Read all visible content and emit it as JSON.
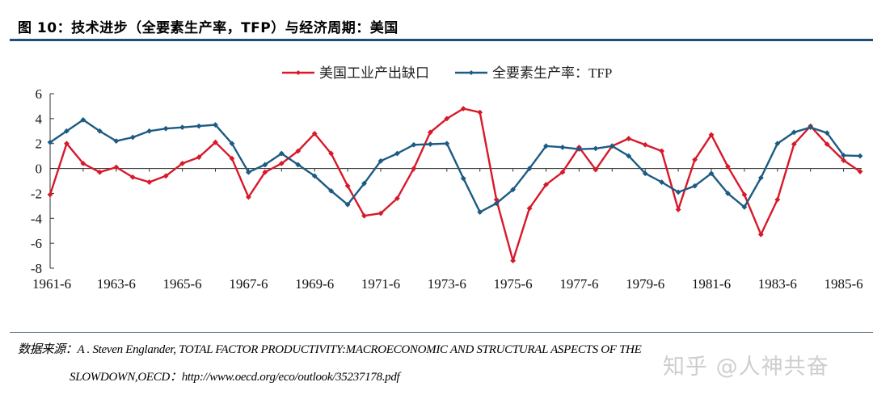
{
  "header": {
    "figure_title": "图 10：技术进步（全要素生产率，TFP）与经济周期：美国"
  },
  "footer": {
    "source_line1": "数据来源：A . Steven Englander, TOTAL FACTOR PRODUCTIVITY:MACROECONOMIC AND STRUCTURAL ASPECTS OF THE",
    "source_line2": "SLOWDOWN,OECD：http://www.oecd.org/eco/outlook/35237178.pdf",
    "watermark": "知乎 @人神共奋"
  },
  "chart_data": {
    "type": "line",
    "title": "",
    "xlabel": "",
    "ylabel": "",
    "ylim": [
      -8,
      6
    ],
    "yticks": [
      6,
      4,
      2,
      0,
      -2,
      -4,
      -6,
      -8
    ],
    "xtick_labels": [
      "1961-6",
      "1963-6",
      "1965-6",
      "1967-6",
      "1969-6",
      "1971-6",
      "1973-6",
      "1975-6",
      "1977-6",
      "1979-6",
      "1981-6",
      "1983-6",
      "1985-6"
    ],
    "frequency": "semi-annual",
    "num_points": 50,
    "grid": false,
    "legend_position": "top-center",
    "series": [
      {
        "name": "美国工业产出缺口",
        "color": "#d7192a",
        "values": [
          -2.1,
          2.0,
          0.4,
          -0.3,
          0.1,
          -0.7,
          -1.1,
          -0.6,
          0.4,
          0.9,
          2.1,
          0.8,
          -2.3,
          -0.3,
          0.4,
          1.4,
          2.8,
          1.2,
          -1.4,
          -3.8,
          -3.6,
          -2.4,
          0.0,
          2.9,
          4.0,
          4.8,
          4.5,
          -2.5,
          -7.4,
          -3.2,
          -1.3,
          -0.3,
          1.7,
          -0.1,
          1.8,
          2.4,
          1.9,
          1.4,
          -3.3,
          0.7,
          2.7,
          0.15,
          -2.1,
          -5.3,
          -2.5,
          1.95,
          3.4,
          1.95,
          0.65,
          -0.25
        ]
      },
      {
        "name": "全要素生产率：TFP",
        "color": "#1c5b82",
        "values": [
          2.1,
          3.0,
          3.9,
          3.0,
          2.2,
          2.5,
          3.0,
          3.2,
          3.3,
          3.4,
          3.5,
          2.0,
          -0.3,
          0.3,
          1.2,
          0.3,
          -0.6,
          -1.8,
          -2.9,
          -1.2,
          0.6,
          1.2,
          1.9,
          1.95,
          2.0,
          -0.8,
          -3.5,
          -2.8,
          -1.7,
          0.0,
          1.8,
          1.7,
          1.55,
          1.6,
          1.8,
          1.0,
          -0.4,
          -1.1,
          -1.9,
          -1.4,
          -0.4,
          -2.0,
          -3.1,
          -0.75,
          2.0,
          2.9,
          3.3,
          2.85,
          1.05,
          1.0
        ]
      }
    ]
  }
}
